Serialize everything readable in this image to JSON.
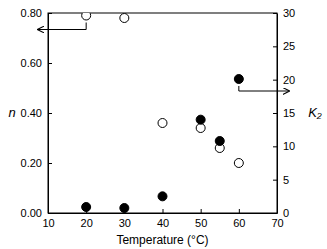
{
  "chart_data": {
    "type": "scatter",
    "xlabel": "Temperature (°C)",
    "ylabel": "n",
    "y2label": "K₂",
    "x": [
      20,
      30,
      40,
      50,
      55,
      60
    ],
    "series": [
      {
        "values": [
          0.79,
          0.78,
          0.36,
          0.34,
          0.26,
          0.2
        ],
        "marker": "open-circle",
        "color": "#000000"
      },
      {
        "values": [
          0.9,
          0.75,
          2.5,
          14,
          10.8,
          20.1
        ],
        "marker": "filled-circle",
        "color": "#000000",
        "axis": "y2"
      }
    ],
    "xlim": [
      10,
      70
    ],
    "xticks": [
      10,
      20,
      30,
      40,
      50,
      60,
      70
    ],
    "ylim": [
      0,
      0.8
    ],
    "yticks": [
      {
        "value": 0,
        "label": "0.00"
      },
      {
        "value": 0.2,
        "label": "0.20"
      },
      {
        "value": 0.4,
        "label": "0.40"
      },
      {
        "value": 0.6,
        "label": "0.60"
      },
      {
        "value": 0.8,
        "label": "0.80"
      }
    ],
    "y2lim": [
      0,
      30
    ],
    "y2ticks": [
      0,
      5,
      10,
      15,
      20,
      25,
      30
    ],
    "grid": false
  }
}
